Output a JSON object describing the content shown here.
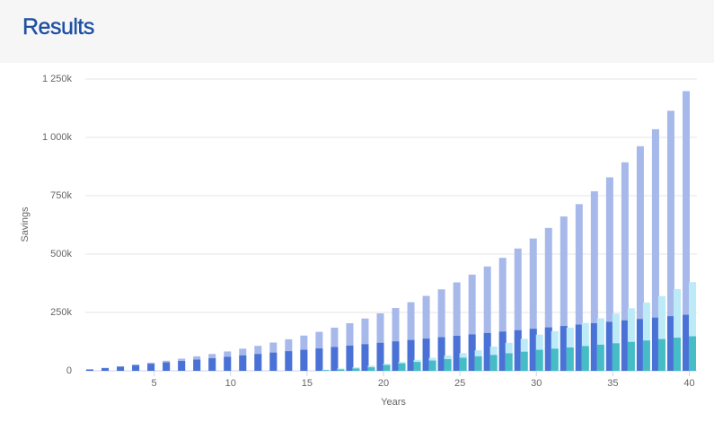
{
  "header": {
    "title": "Results"
  },
  "chart_data": {
    "type": "bar",
    "x_label": "Years",
    "y_label": "Savings",
    "x": [
      1,
      2,
      3,
      4,
      5,
      6,
      7,
      8,
      9,
      10,
      11,
      12,
      13,
      14,
      15,
      16,
      17,
      18,
      19,
      20,
      21,
      22,
      23,
      24,
      25,
      26,
      27,
      28,
      29,
      30,
      31,
      32,
      33,
      34,
      35,
      36,
      37,
      38,
      39,
      40
    ],
    "xlim": [
      0.5,
      40.5
    ],
    "xticks": [
      5,
      10,
      15,
      20,
      25,
      30,
      35,
      40
    ],
    "ylim": [
      0,
      1250000
    ],
    "yticks": [
      0,
      {
        "value": 250000,
        "label": "250k"
      },
      {
        "value": 500000,
        "label": "500k"
      },
      {
        "value": 750000,
        "label": "750k"
      },
      {
        "value": 1000000,
        "label": "1 000k"
      },
      {
        "value": 1250000,
        "label": "1 250k"
      }
    ],
    "grid": true,
    "series": [
      {
        "color": "#a7b9ea",
        "values": [
          6000,
          12000,
          19000,
          27000,
          35000,
          43000,
          52000,
          62000,
          72000,
          83000,
          95000,
          107000,
          121000,
          135000,
          151000,
          167000,
          185000,
          204000,
          224000,
          246000,
          269000,
          294000,
          321000,
          349000,
          379000,
          412000,
          447000,
          484000,
          524000,
          567000,
          612000,
          661000,
          714000,
          769000,
          829000,
          893000,
          962000,
          1035000,
          1114000,
          1198000
        ]
      },
      {
        "color": "#4a72d6",
        "values": [
          6000,
          12000,
          18000,
          24000,
          30000,
          36000,
          42000,
          48000,
          54000,
          60000,
          66000,
          72000,
          78000,
          84000,
          90000,
          96000,
          102000,
          108000,
          114000,
          120000,
          126000,
          132000,
          138000,
          144000,
          150000,
          156000,
          162000,
          168000,
          174000,
          180000,
          186000,
          192000,
          198000,
          204000,
          210000,
          216000,
          222000,
          228000,
          234000,
          240000
        ]
      },
      {
        "color": "#bdeaf7",
        "values": [
          0,
          0,
          0,
          0,
          0,
          0,
          0,
          0,
          0,
          0,
          0,
          0,
          0,
          0,
          0,
          5000,
          10000,
          15000,
          22000,
          30000,
          38000,
          47000,
          56000,
          66000,
          76000,
          88000,
          104000,
          120000,
          137000,
          155000,
          170000,
          185000,
          205000,
          225000,
          245000,
          268000,
          292000,
          320000,
          350000,
          380000
        ]
      },
      {
        "color": "#45bcc6",
        "values": [
          0,
          0,
          0,
          0,
          0,
          0,
          0,
          0,
          0,
          0,
          0,
          0,
          0,
          0,
          0,
          3000,
          6000,
          10000,
          15000,
          25000,
          32000,
          38000,
          44000,
          50000,
          56000,
          62000,
          68000,
          75000,
          82000,
          90000,
          95000,
          100000,
          106000,
          112000,
          118000,
          124000,
          130000,
          136000,
          142000,
          148000
        ]
      }
    ]
  }
}
